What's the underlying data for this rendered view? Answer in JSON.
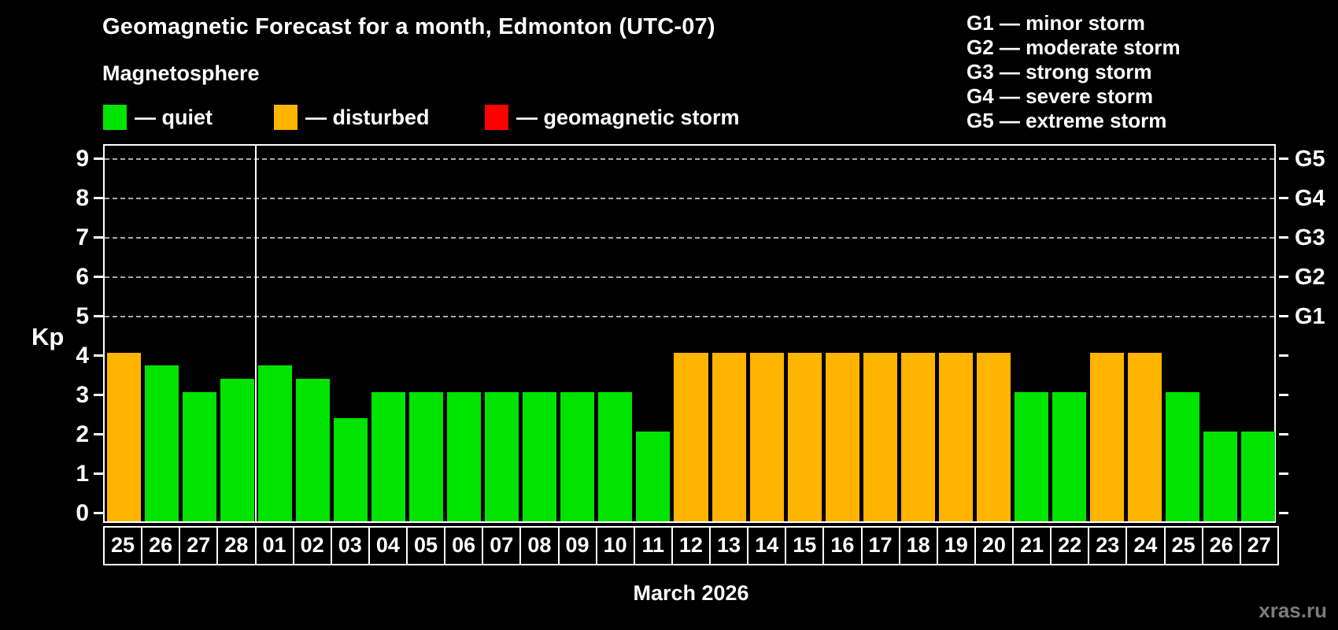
{
  "title": "Geomagnetic Forecast for a month, Edmonton (UTC-07)",
  "subtitle": "Magnetosphere",
  "legend": [
    {
      "name": "quiet",
      "label": "— quiet",
      "color": "#00e400"
    },
    {
      "name": "disturbed",
      "label": "— disturbed",
      "color": "#ffb400"
    },
    {
      "name": "storm",
      "label": "— geomagnetic storm",
      "color": "#ff0000"
    }
  ],
  "g_scale_legend": [
    "G1 — minor storm",
    "G2 — moderate storm",
    "G3 — strong storm",
    "G4 — severe storm",
    "G5 — extreme storm"
  ],
  "y_axis": {
    "label": "Kp",
    "ticks": [
      0,
      1,
      2,
      3,
      4,
      5,
      6,
      7,
      8,
      9
    ]
  },
  "right_axis": {
    "ticks": [
      0,
      1,
      2,
      3,
      4,
      5,
      6,
      7,
      8,
      9
    ],
    "labels": [
      {
        "kp": 5,
        "text": "G1"
      },
      {
        "kp": 6,
        "text": "G2"
      },
      {
        "kp": 7,
        "text": "G3"
      },
      {
        "kp": 8,
        "text": "G4"
      },
      {
        "kp": 9,
        "text": "G5"
      }
    ]
  },
  "x_axis_title": "March 2026",
  "watermark": "xras.ru",
  "month_boundary_after_index": 3,
  "chart_data": {
    "type": "bar",
    "title": "Geomagnetic Forecast for a month, Edmonton (UTC-07)",
    "subtitle": "Magnetosphere",
    "xlabel": "March 2026",
    "ylabel": "Kp",
    "ylim": [
      -0.33,
      9.33
    ],
    "grid": "dashed horizontal at Kp 5-9",
    "gridlines_at": [
      5,
      6,
      7,
      8,
      9
    ],
    "categories": [
      "25",
      "26",
      "27",
      "28",
      "01",
      "02",
      "03",
      "04",
      "05",
      "06",
      "07",
      "08",
      "09",
      "10",
      "11",
      "12",
      "13",
      "14",
      "15",
      "16",
      "17",
      "18",
      "19",
      "20",
      "21",
      "22",
      "23",
      "24",
      "25",
      "26",
      "27"
    ],
    "values": [
      4,
      3.67,
      3,
      3.33,
      3.67,
      3.33,
      2.33,
      3,
      3,
      3,
      3,
      3,
      3,
      3,
      2,
      4,
      4,
      4,
      4,
      4,
      4,
      4,
      4,
      4,
      3,
      3,
      4,
      4,
      3,
      2,
      2
    ],
    "levels": [
      "disturbed",
      "quiet",
      "quiet",
      "quiet",
      "quiet",
      "quiet",
      "quiet",
      "quiet",
      "quiet",
      "quiet",
      "quiet",
      "quiet",
      "quiet",
      "quiet",
      "quiet",
      "disturbed",
      "disturbed",
      "disturbed",
      "disturbed",
      "disturbed",
      "disturbed",
      "disturbed",
      "disturbed",
      "disturbed",
      "quiet",
      "quiet",
      "disturbed",
      "disturbed",
      "quiet",
      "quiet",
      "quiet"
    ],
    "colors": {
      "quiet": "#00e400",
      "disturbed": "#ffb400",
      "storm": "#ff0000"
    },
    "right_scale": {
      "G1": 5,
      "G2": 6,
      "G3": 7,
      "G4": 8,
      "G5": 9
    },
    "legend_position": "top-left and top-right"
  }
}
